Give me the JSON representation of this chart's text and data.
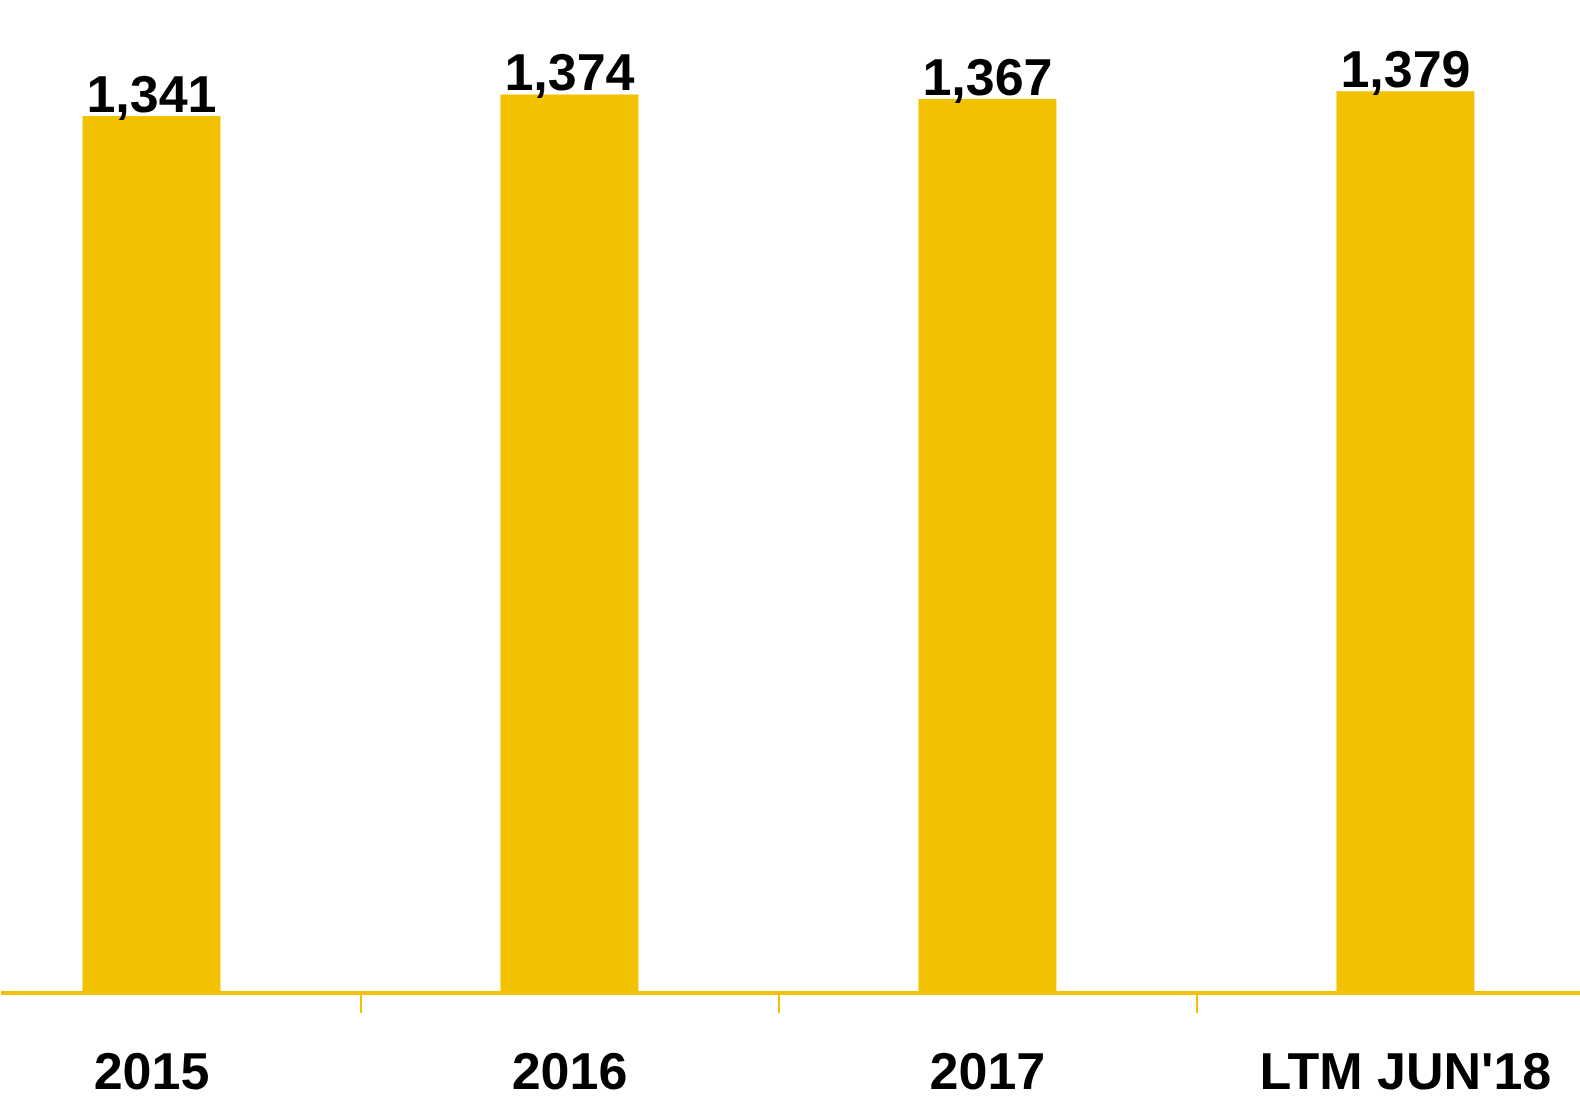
{
  "chart_data": {
    "type": "bar",
    "categories": [
      "2015",
      "2016",
      "2017",
      "LTM JUN'18"
    ],
    "values": [
      1341,
      1374,
      1367,
      1379
    ],
    "value_labels": [
      "1,341",
      "1,374",
      "1,367",
      "1,379"
    ],
    "color": "#f2c200"
  }
}
